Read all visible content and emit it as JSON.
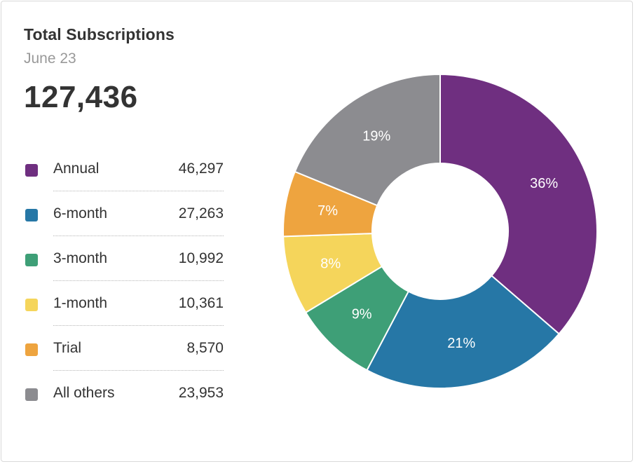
{
  "card": {
    "title": "Total Subscriptions",
    "subtitle": "June 23",
    "total": "127,436"
  },
  "chart_data": {
    "type": "pie",
    "donut": true,
    "slices": [
      {
        "label": "Annual",
        "value": 46297,
        "value_label": "46,297",
        "percent_label": "36%",
        "color": "#6f2f80"
      },
      {
        "label": "6-month",
        "value": 27263,
        "value_label": "27,263",
        "percent_label": "21%",
        "color": "#2677a6"
      },
      {
        "label": "3-month",
        "value": 10992,
        "value_label": "10,992",
        "percent_label": "9%",
        "color": "#3e9f77"
      },
      {
        "label": "1-month",
        "value": 10361,
        "value_label": "10,361",
        "percent_label": "8%",
        "color": "#f5d55b"
      },
      {
        "label": "Trial",
        "value": 8570,
        "value_label": "8,570",
        "percent_label": "7%",
        "color": "#eea43f"
      },
      {
        "label": "All others",
        "value": 23953,
        "value_label": "23,953",
        "percent_label": "19%",
        "color": "#8c8c90"
      }
    ]
  }
}
